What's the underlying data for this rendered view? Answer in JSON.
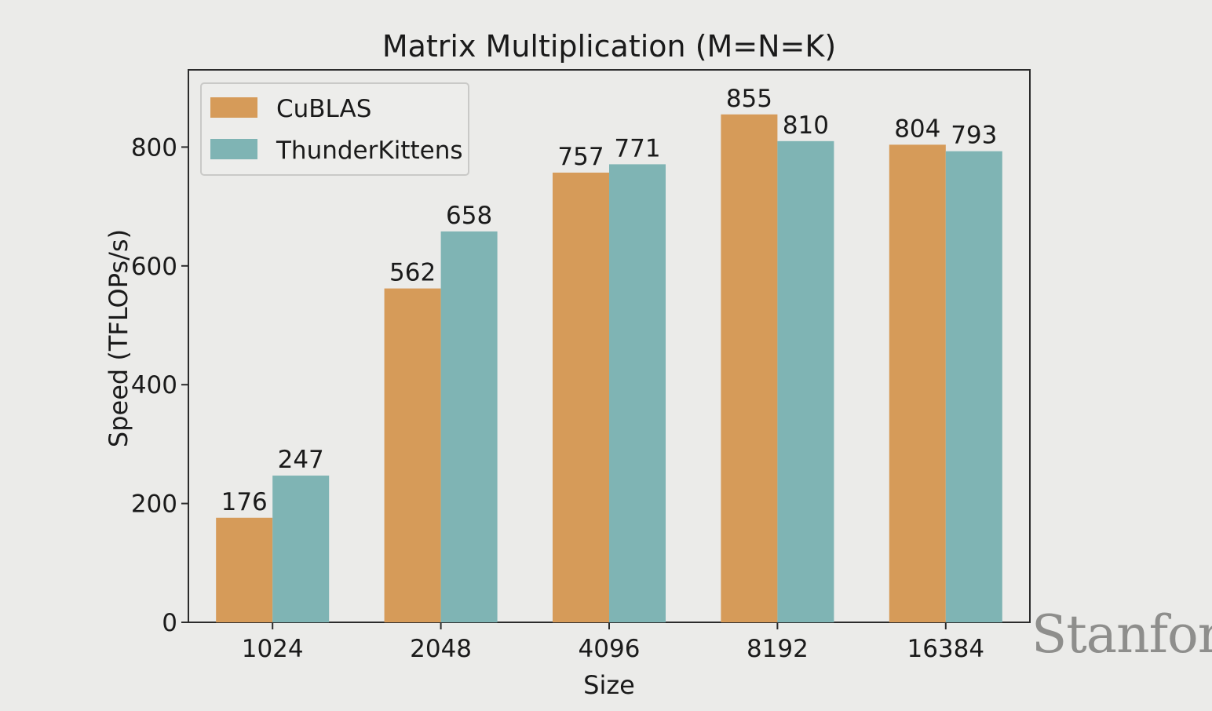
{
  "chart_data": {
    "type": "bar",
    "title": "Matrix Multiplication (M=N=K)",
    "xlabel": "Size",
    "ylabel": "Speed (TFLOPs/s)",
    "categories": [
      "1024",
      "2048",
      "4096",
      "8192",
      "16384"
    ],
    "series": [
      {
        "name": "CuBLAS",
        "values": [
          176,
          562,
          757,
          855,
          804
        ],
        "color": "#d69b59"
      },
      {
        "name": "ThunderKittens",
        "values": [
          247,
          658,
          771,
          810,
          793
        ],
        "color": "#7fb4b4"
      }
    ],
    "value_labels": [
      [
        "176",
        "562",
        "757",
        "855",
        "804"
      ],
      [
        "247",
        "658",
        "771",
        "810",
        "793"
      ]
    ],
    "ylim": [
      0,
      930
    ],
    "yticks": [
      0,
      200,
      400,
      600,
      800
    ],
    "ytick_labels": [
      "0",
      "200",
      "400",
      "600",
      "800"
    ],
    "grid": false,
    "legend_position": "top-left"
  },
  "watermark": "Stanford"
}
